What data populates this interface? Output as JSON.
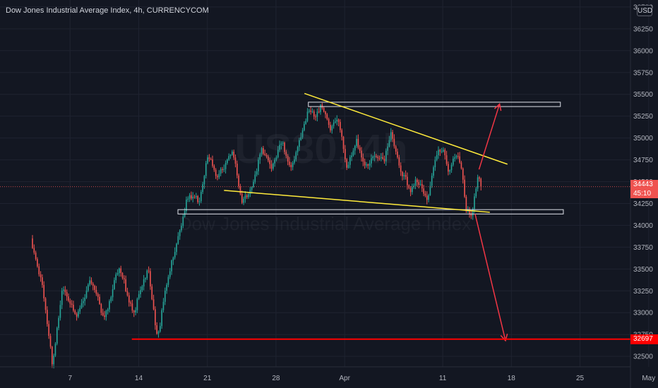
{
  "header": {
    "title": "Dow Jones Industrial Average Index, 4h, CURRENCYCOM",
    "currency": "USD"
  },
  "watermark": {
    "symbol": "US30, 4h",
    "name": "Dow Jones Industrial Average Index"
  },
  "price_tags": {
    "last_price": "34443",
    "countdown": "45:10",
    "support_level": "32697"
  },
  "colors": {
    "background": "#131722",
    "up": "#26a69a",
    "down": "#ef5350",
    "trendline": "#ffeb3b",
    "arrow": "#f23645",
    "level_line": "#ff0000",
    "zone_border": "#e0e3eb"
  },
  "chart_data": {
    "type": "candlestick",
    "x_ticks": [
      "7",
      "14",
      "21",
      "28",
      "Apr",
      "11",
      "18",
      "25",
      "May"
    ],
    "y_ticks": [
      32500,
      32750,
      33000,
      33250,
      33500,
      33750,
      34000,
      34250,
      34500,
      34750,
      35000,
      35250,
      35500,
      35750,
      36000,
      36250,
      36500
    ],
    "ylim": [
      32380,
      36580
    ],
    "x_domain": [
      0,
      64
    ],
    "tick_day": {
      "7": 7,
      "14": 14,
      "21": 21,
      "28": 28,
      "Apr": 35,
      "11": 45,
      "18": 52,
      "25": 59,
      "May": 66
    },
    "anchors": [
      [
        3.0,
        33850
      ],
      [
        4.0,
        33400
      ],
      [
        5.2,
        32420
      ],
      [
        6.2,
        33300
      ],
      [
        7.5,
        32950
      ],
      [
        9.0,
        33350
      ],
      [
        10.5,
        32960
      ],
      [
        12.0,
        33500
      ],
      [
        13.5,
        33000
      ],
      [
        15.0,
        33500
      ],
      [
        15.9,
        32720
      ],
      [
        16.6,
        33150
      ],
      [
        17.8,
        33800
      ],
      [
        19.0,
        34300
      ],
      [
        20.2,
        34300
      ],
      [
        21.0,
        34820
      ],
      [
        22.0,
        34520
      ],
      [
        23.5,
        34880
      ],
      [
        24.5,
        34250
      ],
      [
        25.5,
        34450
      ],
      [
        26.5,
        34860
      ],
      [
        27.5,
        34650
      ],
      [
        28.5,
        34980
      ],
      [
        29.5,
        34600
      ],
      [
        30.5,
        35050
      ],
      [
        31.3,
        35320
      ],
      [
        32.0,
        35200
      ],
      [
        32.6,
        35420
      ],
      [
        33.6,
        35120
      ],
      [
        34.3,
        35220
      ],
      [
        35.2,
        34700
      ],
      [
        36.2,
        34950
      ],
      [
        37.0,
        34650
      ],
      [
        38.0,
        34850
      ],
      [
        39.0,
        34700
      ],
      [
        39.8,
        35080
      ],
      [
        40.6,
        34700
      ],
      [
        41.7,
        34350
      ],
      [
        42.4,
        34550
      ],
      [
        43.5,
        34300
      ],
      [
        44.3,
        34750
      ],
      [
        45.0,
        34920
      ],
      [
        45.6,
        34650
      ],
      [
        46.4,
        34780
      ],
      [
        46.9,
        34650
      ],
      [
        47.4,
        34200
      ],
      [
        48.0,
        34150
      ],
      [
        48.5,
        34550
      ],
      [
        48.9,
        34450
      ]
    ],
    "last_price": 34443,
    "support_level": 32697,
    "zones": [
      {
        "x0": 31.3,
        "x1": 57.0,
        "low": 35360,
        "high": 35410
      },
      {
        "x0": 18.0,
        "x1": 57.3,
        "low": 34130,
        "high": 34180
      }
    ],
    "trendlines": [
      {
        "x0": 30.9,
        "y0": 35510,
        "x1": 51.6,
        "y1": 34700
      },
      {
        "x0": 22.7,
        "y0": 34400,
        "x1": 49.8,
        "y1": 34150
      }
    ],
    "arrows": [
      {
        "x0": 48.7,
        "y0": 34640,
        "x1": 50.8,
        "y1": 35390
      },
      {
        "x0": 48.3,
        "y0": 34130,
        "x1": 51.4,
        "y1": 32680
      }
    ],
    "level_start": 13.3
  }
}
